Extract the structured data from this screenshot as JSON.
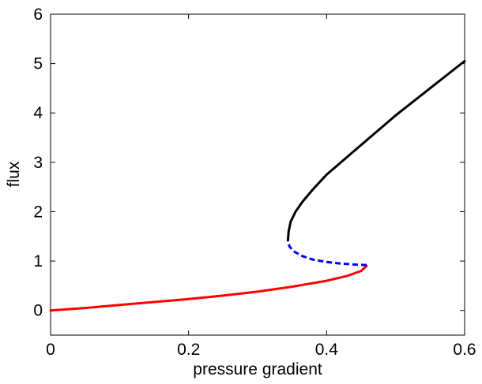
{
  "chart_data": {
    "type": "line",
    "title": "",
    "xlabel": "pressure gradient",
    "ylabel": "flux",
    "xlim": [
      0,
      0.6
    ],
    "ylim": [
      -0.5,
      6
    ],
    "xticks": [
      0,
      0.2,
      0.4,
      0.6
    ],
    "xtick_labels": [
      "0",
      "0.2",
      "0.4",
      "0.6"
    ],
    "yticks": [
      0,
      1,
      2,
      3,
      4,
      5,
      6
    ],
    "ytick_labels": [
      "0",
      "1",
      "2",
      "3",
      "4",
      "5",
      "6"
    ],
    "grid": false,
    "series": [
      {
        "color": "#ff0000",
        "line_style": "solid",
        "x": [
          0,
          0.05,
          0.1,
          0.15,
          0.2,
          0.25,
          0.3,
          0.35,
          0.4,
          0.43,
          0.45,
          0.458
        ],
        "y": [
          0,
          0.05,
          0.11,
          0.17,
          0.23,
          0.3,
          0.38,
          0.48,
          0.6,
          0.7,
          0.8,
          0.9
        ]
      },
      {
        "color": "#0000ff",
        "line_style": "dashed",
        "x": [
          0.458,
          0.44,
          0.42,
          0.4,
          0.38,
          0.365,
          0.352,
          0.346,
          0.344
        ],
        "y": [
          0.92,
          0.93,
          0.95,
          0.98,
          1.03,
          1.1,
          1.2,
          1.3,
          1.42
        ]
      },
      {
        "color": "#000000",
        "line_style": "solid",
        "x": [
          0.344,
          0.345,
          0.348,
          0.355,
          0.365,
          0.38,
          0.4,
          0.45,
          0.5,
          0.55,
          0.6
        ],
        "y": [
          1.42,
          1.6,
          1.8,
          2.0,
          2.2,
          2.45,
          2.75,
          3.35,
          3.95,
          4.5,
          5.05
        ]
      }
    ]
  }
}
